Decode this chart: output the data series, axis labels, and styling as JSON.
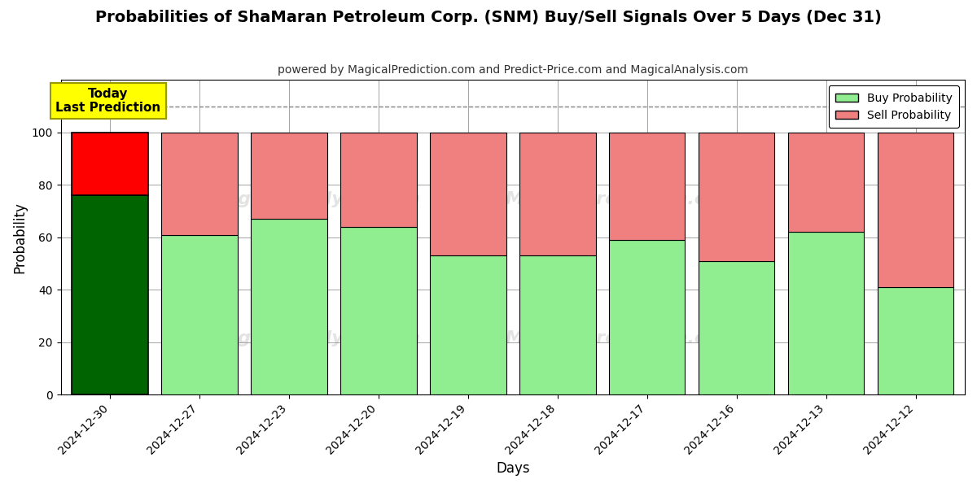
{
  "title": "Probabilities of ShaMaran Petroleum Corp. (SNM) Buy/Sell Signals Over 5 Days (Dec 31)",
  "subtitle": "powered by MagicalPrediction.com and Predict-Price.com and MagicalAnalysis.com",
  "xlabel": "Days",
  "ylabel": "Probability",
  "categories": [
    "2024-12-30",
    "2024-12-27",
    "2024-12-23",
    "2024-12-20",
    "2024-12-19",
    "2024-12-18",
    "2024-12-17",
    "2024-12-16",
    "2024-12-13",
    "2024-12-12"
  ],
  "buy_values": [
    76,
    61,
    67,
    64,
    53,
    53,
    59,
    51,
    62,
    41
  ],
  "sell_values": [
    24,
    39,
    33,
    36,
    47,
    47,
    41,
    49,
    38,
    59
  ],
  "today_index": 0,
  "today_buy_color": "#006400",
  "today_sell_color": "#ff0000",
  "other_buy_color": "#90EE90",
  "other_sell_color": "#F08080",
  "today_label_bg": "#ffff00",
  "today_label_text": "Today\nLast Prediction",
  "legend_buy": "Buy Probability",
  "legend_sell": "Sell Probability",
  "ylim": [
    0,
    120
  ],
  "yticks": [
    0,
    20,
    40,
    60,
    80,
    100
  ],
  "dashed_line_y": 110,
  "background_color": "#ffffff",
  "title_fontsize": 14,
  "subtitle_fontsize": 10,
  "bar_edge_color": "#000000",
  "bar_width": 0.85
}
